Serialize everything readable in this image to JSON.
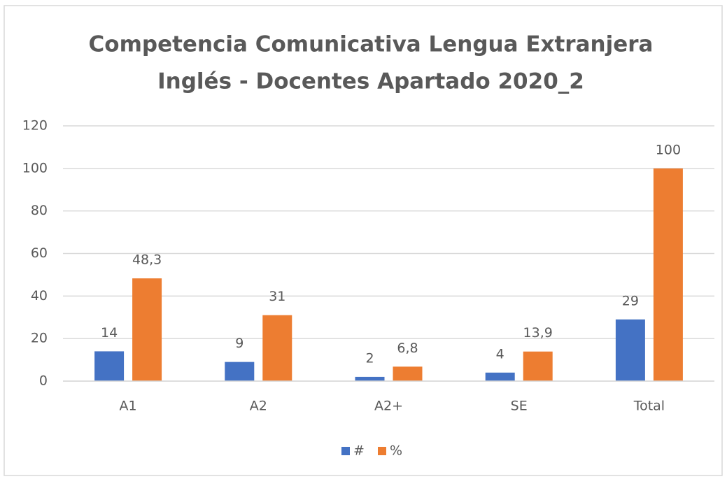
{
  "chart_data": {
    "type": "bar",
    "title": [
      "Competencia Comunicativa Lengua Extranjera",
      "Inglés - Docentes Apartado 2020_2"
    ],
    "categories": [
      "A1",
      "A2",
      "A2+",
      "SE",
      "Total"
    ],
    "series": [
      {
        "name": "#",
        "color": "#4472c4",
        "values": [
          14,
          9,
          2,
          4,
          29
        ]
      },
      {
        "name": "%",
        "color": "#ed7d31",
        "values": [
          48.3,
          31,
          6.8,
          13.9,
          100
        ],
        "value_labels": [
          "48,3",
          "31",
          "6,8",
          "13,9",
          "100"
        ]
      }
    ],
    "ylim": [
      0,
      120
    ],
    "yticks": [
      0,
      20,
      40,
      60,
      80,
      100,
      120
    ],
    "grid": true,
    "legend": "bottom"
  }
}
